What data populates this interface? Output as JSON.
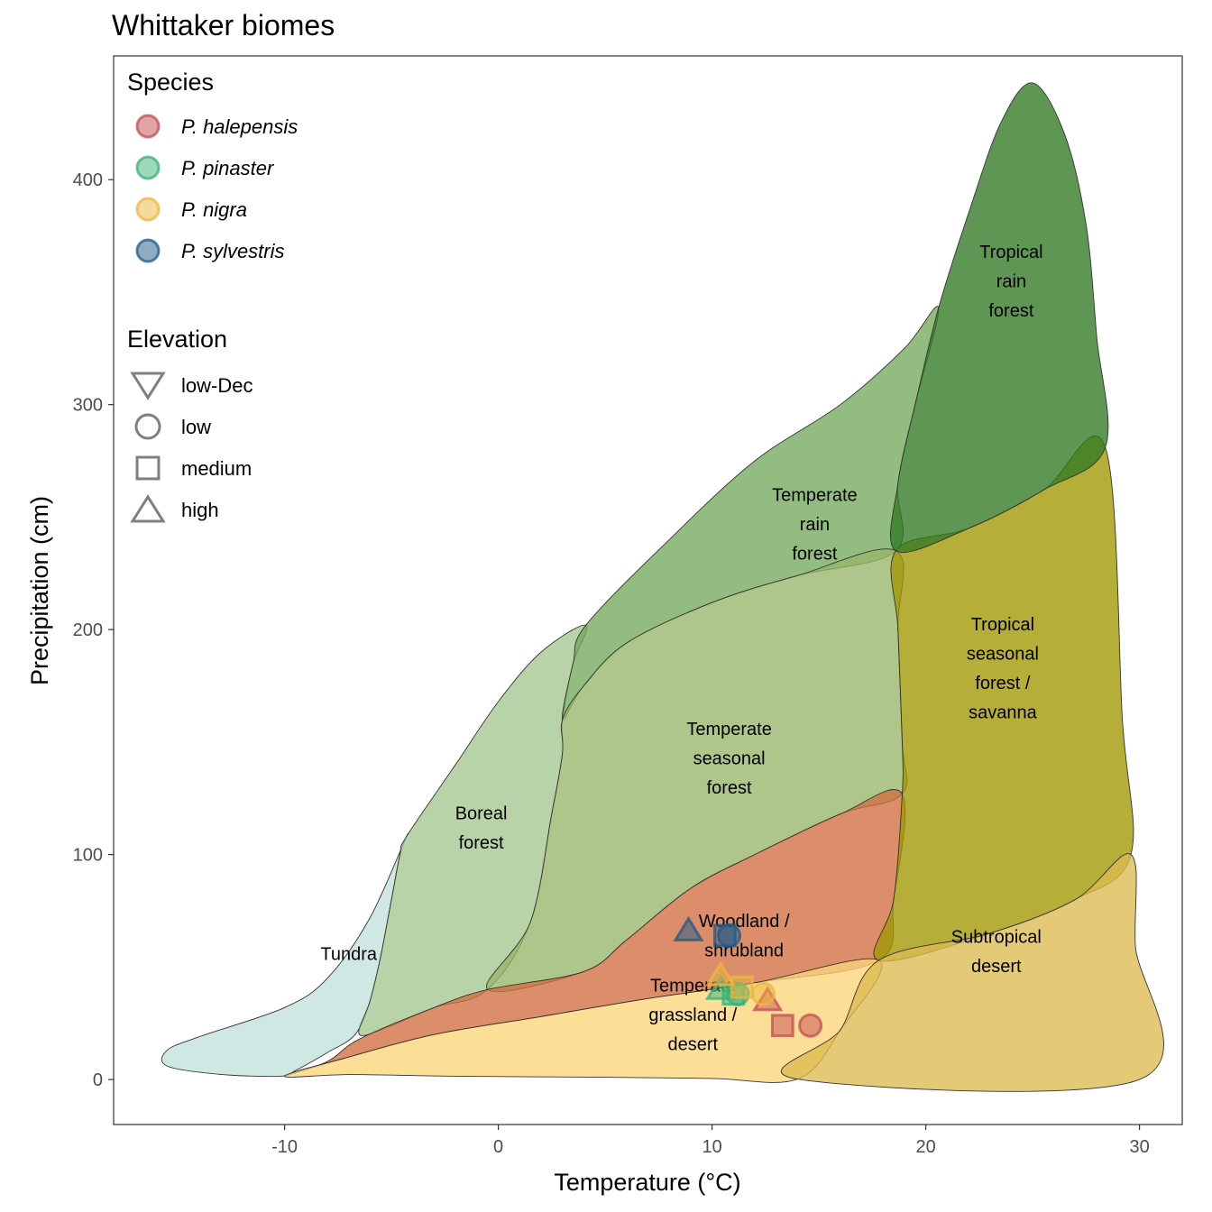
{
  "chart_data": {
    "type": "scatter",
    "title": "Whittaker biomes",
    "xlabel": "Temperature (°C)",
    "ylabel": "Precipitation (cm)",
    "xlim": [
      -18,
      32
    ],
    "ylim": [
      -20,
      455
    ],
    "x_ticks": [
      -10,
      0,
      10,
      20,
      30
    ],
    "x_tick_labels": [
      "-10",
      "0",
      "10",
      "20",
      "30"
    ],
    "y_ticks": [
      0,
      100,
      200,
      300,
      400
    ],
    "y_tick_labels": [
      "0",
      "100",
      "200",
      "300",
      "400"
    ],
    "grid": false,
    "legend_position": "top-left",
    "biomes": [
      {
        "name": "Tundra",
        "label_lines": [
          "Tundra"
        ],
        "color": "#C1E1DD",
        "label_at": [
          -7,
          56
        ],
        "polygon": [
          [
            -10.2,
            1.5
          ],
          [
            -13,
            2.3
          ],
          [
            -15.5,
            6
          ],
          [
            -15.5,
            13
          ],
          [
            -14,
            19
          ],
          [
            -10,
            32
          ],
          [
            -8,
            45
          ],
          [
            -6,
            72
          ],
          [
            -4.3,
            108
          ],
          [
            -4.6,
            100
          ],
          [
            -5,
            80
          ],
          [
            -5.5,
            55
          ],
          [
            -6,
            35
          ],
          [
            -6.7,
            20
          ],
          [
            -8,
            12
          ],
          [
            -9.5,
            4
          ]
        ]
      },
      {
        "name": "Boreal forest",
        "label_lines": [
          "Boreal",
          "forest"
        ],
        "color": "#A5C790",
        "label_at": [
          -0.8,
          112
        ],
        "polygon": [
          [
            -4.3,
            108
          ],
          [
            -2,
            140
          ],
          [
            0,
            168
          ],
          [
            2,
            190
          ],
          [
            4.1,
            202
          ],
          [
            3.5,
            185
          ],
          [
            3,
            160
          ],
          [
            3,
            145
          ],
          [
            2.5,
            118
          ],
          [
            1.5,
            70
          ],
          [
            -0.5,
            40
          ],
          [
            -3,
            32
          ],
          [
            -5,
            24
          ],
          [
            -6.5,
            20
          ],
          [
            -6,
            35
          ],
          [
            -5.5,
            55
          ],
          [
            -5,
            80
          ],
          [
            -4.6,
            100
          ]
        ]
      },
      {
        "name": "Temperate rain forest",
        "label_lines": [
          "Temperate",
          "rain",
          "forest"
        ],
        "color": "#75A95E",
        "label_at": [
          14.8,
          247
        ],
        "polygon": [
          [
            4.1,
            202
          ],
          [
            8,
            240
          ],
          [
            12,
            275
          ],
          [
            16,
            300
          ],
          [
            19,
            325
          ],
          [
            20.6,
            343
          ],
          [
            19.5,
            300
          ],
          [
            18.7,
            265
          ],
          [
            18.6,
            235
          ],
          [
            14,
            224
          ],
          [
            10,
            212
          ],
          [
            6,
            194
          ],
          [
            4,
            175
          ],
          [
            3,
            160
          ],
          [
            3.5,
            185
          ]
        ]
      },
      {
        "name": "Temperate seasonal forest",
        "label_lines": [
          "Temperate",
          "seasonal",
          "forest"
        ],
        "color": "#97B669",
        "label_at": [
          10.8,
          143
        ],
        "polygon": [
          [
            3,
            160
          ],
          [
            4,
            175
          ],
          [
            6,
            194
          ],
          [
            10,
            212
          ],
          [
            14,
            224
          ],
          [
            18.6,
            235
          ],
          [
            18.7,
            200
          ],
          [
            18.9,
            150
          ],
          [
            18.9,
            127
          ],
          [
            16,
            118
          ],
          [
            12,
            100
          ],
          [
            9,
            85
          ],
          [
            6,
            62
          ],
          [
            4,
            48
          ],
          [
            -0.5,
            40
          ],
          [
            1.5,
            70
          ],
          [
            2.5,
            118
          ],
          [
            3,
            145
          ]
        ]
      },
      {
        "name": "Woodland / shrubland",
        "label_lines": [
          "Woodland /",
          "shrubland"
        ],
        "color": "#D16E3F",
        "label_at": [
          11.5,
          64
        ],
        "polygon": [
          [
            -10,
            1.5
          ],
          [
            -8,
            8
          ],
          [
            -6.5,
            18
          ],
          [
            -3,
            32
          ],
          [
            -0.5,
            40
          ],
          [
            4,
            48
          ],
          [
            6,
            62
          ],
          [
            9,
            85
          ],
          [
            12,
            100
          ],
          [
            16,
            118
          ],
          [
            18.9,
            127
          ],
          [
            18.5,
            80
          ],
          [
            17.8,
            53
          ],
          [
            12,
            43
          ],
          [
            7,
            36
          ],
          [
            2,
            28
          ],
          [
            -3,
            20
          ],
          [
            -7,
            10
          ]
        ]
      },
      {
        "name": "Temperate grassland / desert",
        "label_lines": [
          "Temperate",
          "grassland /",
          "desert"
        ],
        "color": "#FCD57A",
        "label_at": [
          9.1,
          29
        ],
        "polygon": [
          [
            -10,
            1.5
          ],
          [
            -7,
            2.2
          ],
          [
            -2,
            1.5
          ],
          [
            5,
            1
          ],
          [
            10,
            0.5
          ],
          [
            14,
            0.2
          ],
          [
            16,
            22
          ],
          [
            17.8,
            53
          ],
          [
            12,
            43
          ],
          [
            7,
            36
          ],
          [
            2,
            28
          ],
          [
            -3,
            20
          ],
          [
            -7,
            10
          ]
        ]
      },
      {
        "name": "Tropical seasonal forest / savanna",
        "label_lines": [
          "Tropical",
          "seasonal",
          "forest /",
          "savanna"
        ],
        "color": "#A09700",
        "label_at": [
          23.6,
          183
        ],
        "polygon": [
          [
            18.6,
            235
          ],
          [
            22,
            245
          ],
          [
            25.5,
            262
          ],
          [
            28.4,
            281
          ],
          [
            29.2,
            160
          ],
          [
            29.6,
            100
          ],
          [
            27,
            80
          ],
          [
            23,
            65
          ],
          [
            17.8,
            53
          ],
          [
            18.5,
            80
          ],
          [
            18.9,
            127
          ],
          [
            18.9,
            150
          ],
          [
            18.7,
            200
          ]
        ]
      },
      {
        "name": "Tropical rain forest",
        "label_lines": [
          "Tropical",
          "rain",
          "forest"
        ],
        "color": "#317A22",
        "label_at": [
          24,
          355
        ],
        "polygon": [
          [
            20.6,
            343
          ],
          [
            22,
            385
          ],
          [
            23.5,
            425
          ],
          [
            25,
            443
          ],
          [
            26.5,
            420
          ],
          [
            27.5,
            380
          ],
          [
            28,
            330
          ],
          [
            28.4,
            281
          ],
          [
            25.5,
            262
          ],
          [
            22,
            245
          ],
          [
            18.6,
            235
          ],
          [
            18.7,
            265
          ],
          [
            19.5,
            300
          ]
        ]
      },
      {
        "name": "Subtropical desert",
        "label_lines": [
          "Subtropical",
          "desert"
        ],
        "color": "#DCBB50",
        "label_at": [
          23.3,
          57
        ],
        "polygon": [
          [
            14,
            0.2
          ],
          [
            30,
            0
          ],
          [
            29.8,
            60
          ],
          [
            29.6,
            100
          ],
          [
            27,
            80
          ],
          [
            23,
            65
          ],
          [
            17.8,
            53
          ],
          [
            16,
            22
          ]
        ]
      }
    ],
    "series": [
      {
        "name": "P. halepensis",
        "color": "#C34C52",
        "points": [
          {
            "x": 14.6,
            "y": 24,
            "elevation": "low"
          },
          {
            "x": 13.3,
            "y": 24,
            "elevation": "medium"
          },
          {
            "x": 12.6,
            "y": 35,
            "elevation": "high"
          }
        ]
      },
      {
        "name": "P. pinaster",
        "color": "#37B27A",
        "points": [
          {
            "x": 11.2,
            "y": 38,
            "elevation": "low"
          },
          {
            "x": 11.0,
            "y": 38,
            "elevation": "medium"
          },
          {
            "x": 10.4,
            "y": 40,
            "elevation": "high"
          }
        ]
      },
      {
        "name": "P. nigra",
        "color": "#ECB53E",
        "points": [
          {
            "x": 12.4,
            "y": 38,
            "elevation": "low"
          },
          {
            "x": 11.4,
            "y": 41,
            "elevation": "medium"
          },
          {
            "x": 10.4,
            "y": 46,
            "elevation": "high"
          }
        ]
      },
      {
        "name": "P. sylvestris",
        "color": "#1F5A8A",
        "points": [
          {
            "x": 10.8,
            "y": 64,
            "elevation": "low"
          },
          {
            "x": 10.6,
            "y": 64,
            "elevation": "medium"
          },
          {
            "x": 8.9,
            "y": 66,
            "elevation": "high"
          }
        ]
      }
    ],
    "legends": {
      "species": {
        "title": "Species",
        "items": [
          "P. halepensis",
          "P. pinaster",
          "P. nigra",
          "P. sylvestris"
        ]
      },
      "elevation": {
        "title": "Elevation",
        "items": [
          {
            "label": "low-Dec",
            "shape": "triangle-down"
          },
          {
            "label": "low",
            "shape": "circle"
          },
          {
            "label": "medium",
            "shape": "square"
          },
          {
            "label": "high",
            "shape": "triangle-up"
          }
        ]
      }
    }
  }
}
